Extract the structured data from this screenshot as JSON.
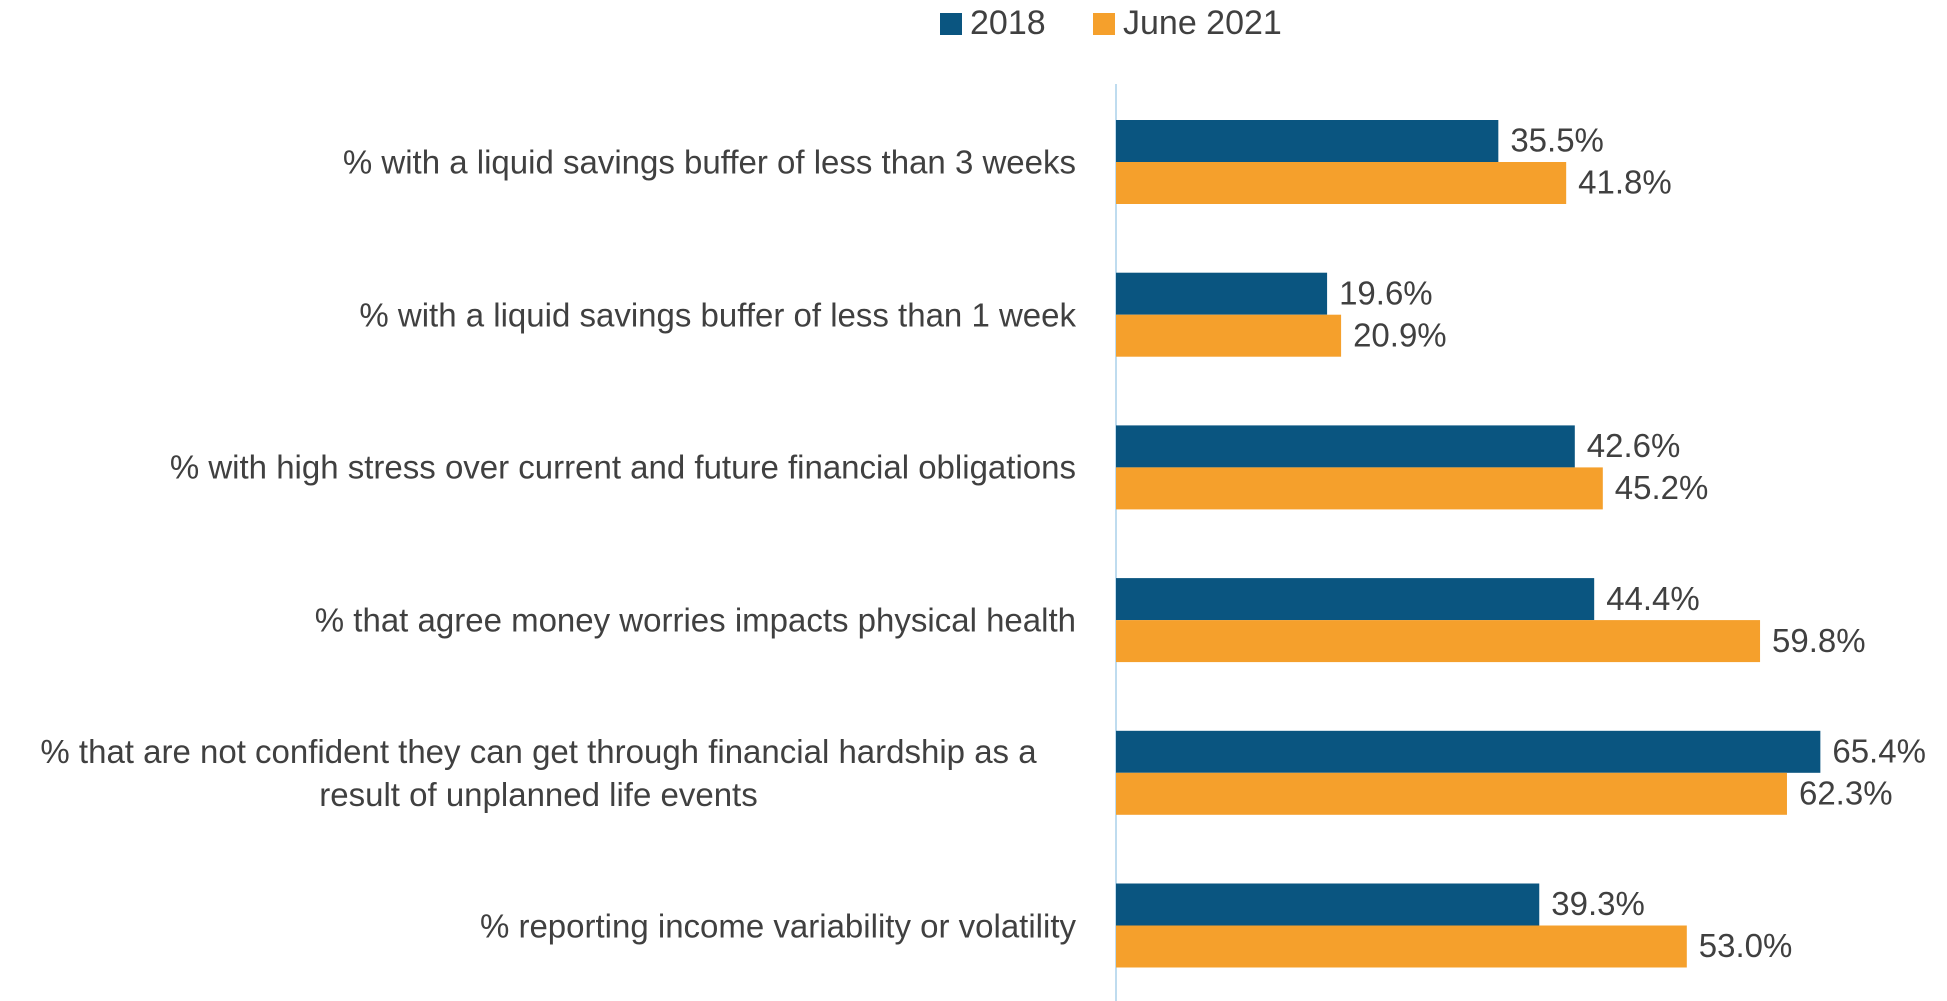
{
  "chart_data": {
    "type": "bar",
    "orientation": "horizontal",
    "categories": [
      "% with a liquid savings buffer of less than 3 weeks",
      "% with a liquid savings buffer of less than 1 week",
      "% with high stress over current and future financial obligations",
      "% that agree money worries impacts physical health",
      "% that are not confident they can get through financial hardship as a result of unplanned life events",
      "% reporting income variability or volatility"
    ],
    "series": [
      {
        "name": "2018",
        "color": "#0a5580",
        "values": [
          35.5,
          19.6,
          42.6,
          44.4,
          65.4,
          39.3
        ],
        "value_labels": [
          "35.5%",
          "19.6%",
          "42.6%",
          "44.4%",
          "65.4%",
          "39.3%"
        ]
      },
      {
        "name": "June 2021",
        "color": "#f5a02c",
        "values": [
          41.8,
          20.9,
          45.2,
          59.8,
          62.3,
          53.0
        ],
        "value_labels": [
          "41.8%",
          "20.9%",
          "45.2%",
          "59.8%",
          "62.3%",
          "53.0%"
        ]
      }
    ],
    "legend": "top"
  }
}
